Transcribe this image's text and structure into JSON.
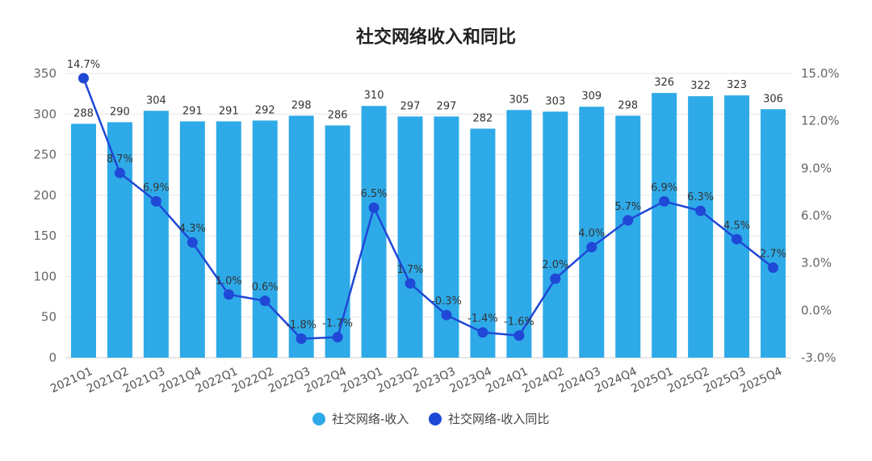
{
  "chart_data": {
    "type": "bar",
    "title": "社交网络收入和同比",
    "categories": [
      "2021Q1",
      "2021Q2",
      "2021Q3",
      "2021Q4",
      "2022Q1",
      "2022Q2",
      "2022Q3",
      "2022Q4",
      "2023Q1",
      "2023Q2",
      "2023Q3",
      "2023Q4",
      "2024Q1",
      "2024Q2",
      "2024Q3",
      "2024Q4",
      "2025Q1",
      "2025Q2",
      "2025Q3",
      "2025Q4"
    ],
    "series": [
      {
        "name": "社交网络-收入",
        "type": "bar",
        "axis": "left",
        "color": "#2eaae8",
        "values": [
          288,
          290,
          304,
          291,
          291,
          292,
          298,
          286,
          310,
          297,
          297,
          282,
          305,
          303,
          309,
          298,
          326,
          322,
          323,
          306
        ],
        "labels": [
          "288",
          "290",
          "304",
          "291",
          "291",
          "292",
          "298",
          "286",
          "310",
          "297",
          "297",
          "282",
          "305",
          "303",
          "309",
          "298",
          "326",
          "322",
          "323",
          "306"
        ]
      },
      {
        "name": "社交网络-收入同比",
        "type": "line",
        "axis": "right",
        "color": "#1f48d6",
        "values": [
          14.7,
          8.7,
          6.9,
          4.3,
          1.0,
          0.6,
          -1.8,
          -1.7,
          6.5,
          1.7,
          -0.3,
          -1.4,
          -1.6,
          2.0,
          4.0,
          5.7,
          6.9,
          6.3,
          4.5,
          2.7
        ],
        "labels": [
          "14.7%",
          "8.7%",
          "6.9%",
          "4.3%",
          "1.0%",
          "0.6%",
          "-1.8%",
          "-1.7%",
          "6.5%",
          "1.7%",
          "-0.3%",
          "-1.4%",
          "-1.6%",
          "2.0%",
          "4.0%",
          "5.7%",
          "6.9%",
          "6.3%",
          "4.5%",
          "2.7%"
        ]
      }
    ],
    "y_left": {
      "ylim": [
        0,
        350
      ],
      "ticks": [
        "0",
        "50",
        "100",
        "150",
        "200",
        "250",
        "300",
        "350"
      ],
      "tick_values": [
        0,
        50,
        100,
        150,
        200,
        250,
        300,
        350
      ]
    },
    "y_right": {
      "ylim": [
        -3.0,
        15.0
      ],
      "ticks": [
        "-3.0%",
        "0.0%",
        "3.0%",
        "6.0%",
        "9.0%",
        "12.0%",
        "15.0%"
      ],
      "tick_values": [
        -3,
        0,
        3,
        6,
        9,
        12,
        15
      ]
    },
    "legend": {
      "position": "bottom",
      "items": [
        "社交网络-收入",
        "社交网络-收入同比"
      ]
    },
    "grid": true
  }
}
